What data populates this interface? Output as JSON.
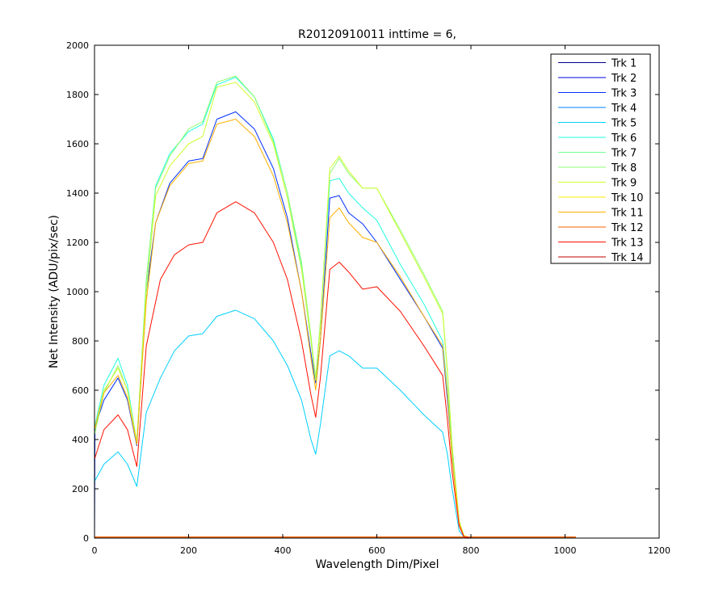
{
  "chart_data": {
    "type": "line",
    "title": "R20120910011 inttime = 6,",
    "xlabel": "Wavelength Dim/Pixel",
    "ylabel": "Net Intensity (ADU/pix/sec)",
    "xlim": [
      0,
      1200
    ],
    "ylim": [
      0,
      2000
    ],
    "xticks": [
      0,
      200,
      400,
      600,
      800,
      1000,
      1200
    ],
    "yticks": [
      0,
      200,
      400,
      600,
      800,
      1000,
      1200,
      1400,
      1600,
      1800,
      2000
    ],
    "legend_position": "top-right",
    "grid": false,
    "series": [
      {
        "name": "Trk 1",
        "color": "#00008f",
        "x": [
          0,
          1023
        ],
        "y": [
          0,
          0
        ]
      },
      {
        "name": "Trk 2",
        "color": "#0000df",
        "x": [
          0,
          1023
        ],
        "y": [
          2,
          2
        ]
      },
      {
        "name": "Trk 3",
        "color": "#0030ff",
        "x": [
          0,
          1,
          20,
          50,
          70,
          90,
          110,
          130,
          160,
          200,
          230,
          260,
          300,
          340,
          380,
          410,
          440,
          460,
          470,
          480,
          500,
          520,
          540,
          570,
          600,
          650,
          700,
          740,
          750,
          760,
          775,
          785,
          800,
          1023
        ],
        "y": [
          0,
          450,
          560,
          650,
          560,
          375,
          1000,
          1280,
          1440,
          1530,
          1540,
          1700,
          1730,
          1660,
          1500,
          1300,
          1000,
          750,
          630,
          800,
          1380,
          1390,
          1320,
          1275,
          1200,
          1050,
          900,
          770,
          560,
          330,
          60,
          10,
          0,
          0
        ]
      },
      {
        "name": "Trk 4",
        "color": "#0080ff",
        "x": [
          0,
          1023
        ],
        "y": [
          3,
          3
        ]
      },
      {
        "name": "Trk 5",
        "color": "#00cfff",
        "x": [
          0,
          20,
          50,
          70,
          90,
          110,
          140,
          170,
          200,
          230,
          260,
          300,
          340,
          380,
          410,
          440,
          460,
          470,
          480,
          500,
          520,
          540,
          570,
          600,
          650,
          700,
          740,
          750,
          760,
          775,
          785,
          800,
          1023
        ],
        "y": [
          230,
          300,
          350,
          300,
          210,
          510,
          650,
          760,
          820,
          830,
          900,
          925,
          890,
          800,
          700,
          560,
          400,
          340,
          460,
          740,
          760,
          740,
          690,
          690,
          600,
          500,
          430,
          340,
          200,
          30,
          5,
          0,
          0
        ]
      },
      {
        "name": "Trk 6",
        "color": "#20ffdf",
        "x": [
          0,
          20,
          50,
          70,
          90,
          110,
          130,
          160,
          200,
          230,
          260,
          300,
          340,
          380,
          410,
          440,
          460,
          470,
          480,
          500,
          520,
          540,
          570,
          600,
          650,
          700,
          740,
          750,
          760,
          775,
          785,
          800,
          1023
        ],
        "y": [
          450,
          620,
          730,
          620,
          390,
          1040,
          1430,
          1560,
          1650,
          1680,
          1840,
          1870,
          1790,
          1620,
          1400,
          1100,
          800,
          640,
          870,
          1450,
          1460,
          1400,
          1340,
          1290,
          1110,
          950,
          800,
          600,
          360,
          70,
          10,
          0,
          0
        ]
      },
      {
        "name": "Trk 7",
        "color": "#6fff8f",
        "x": [
          0,
          1023
        ],
        "y": [
          4,
          4
        ]
      },
      {
        "name": "Trk 8",
        "color": "#8fff6f",
        "x": [
          0,
          20,
          50,
          70,
          90,
          110,
          130,
          160,
          200,
          230,
          260,
          300,
          340,
          380,
          410,
          440,
          460,
          470,
          480,
          500,
          520,
          540,
          570,
          600,
          650,
          700,
          740,
          750,
          760,
          775,
          785,
          800,
          1023
        ],
        "y": [
          420,
          590,
          700,
          600,
          390,
          1050,
          1420,
          1550,
          1660,
          1690,
          1850,
          1875,
          1790,
          1610,
          1400,
          1120,
          820,
          650,
          880,
          1480,
          1540,
          1480,
          1420,
          1420,
          1250,
          1070,
          920,
          680,
          380,
          70,
          10,
          0,
          0
        ]
      },
      {
        "name": "Trk 9",
        "color": "#cfff30",
        "x": [
          0,
          20,
          50,
          70,
          90,
          110,
          130,
          160,
          200,
          230,
          260,
          300,
          340,
          380,
          410,
          440,
          460,
          470,
          480,
          500,
          520,
          540,
          570,
          600,
          650,
          700,
          740,
          750,
          760,
          775,
          785,
          800,
          1023
        ],
        "y": [
          440,
          600,
          690,
          600,
          390,
          1000,
          1390,
          1510,
          1600,
          1630,
          1830,
          1850,
          1770,
          1600,
          1380,
          1090,
          800,
          640,
          860,
          1500,
          1550,
          1490,
          1420,
          1420,
          1240,
          1060,
          910,
          670,
          370,
          70,
          10,
          0,
          0
        ]
      },
      {
        "name": "Trk 10",
        "color": "#ffef00",
        "x": [
          0,
          1023
        ],
        "y": [
          3,
          3
        ]
      },
      {
        "name": "Trk 11",
        "color": "#ffaf00",
        "x": [
          0,
          20,
          50,
          70,
          90,
          110,
          130,
          160,
          200,
          230,
          260,
          300,
          340,
          380,
          410,
          440,
          460,
          470,
          480,
          500,
          520,
          540,
          570,
          600,
          650,
          700,
          740,
          750,
          760,
          775,
          785,
          800,
          1023
        ],
        "y": [
          440,
          590,
          660,
          570,
          380,
          960,
          1280,
          1430,
          1520,
          1530,
          1680,
          1700,
          1630,
          1470,
          1280,
          1000,
          730,
          600,
          800,
          1300,
          1340,
          1280,
          1220,
          1200,
          1060,
          900,
          780,
          580,
          320,
          60,
          10,
          0,
          0
        ]
      },
      {
        "name": "Trk 12",
        "color": "#ff6000",
        "x": [
          0,
          1023
        ],
        "y": [
          5,
          5
        ]
      },
      {
        "name": "Trk 13",
        "color": "#ff1000",
        "x": [
          0,
          20,
          50,
          70,
          90,
          110,
          140,
          170,
          200,
          230,
          260,
          300,
          340,
          380,
          410,
          440,
          460,
          470,
          480,
          500,
          520,
          540,
          570,
          600,
          650,
          700,
          740,
          750,
          760,
          775,
          785,
          800,
          1023
        ],
        "y": [
          320,
          440,
          500,
          440,
          290,
          780,
          1050,
          1150,
          1190,
          1200,
          1320,
          1365,
          1320,
          1200,
          1050,
          800,
          580,
          490,
          650,
          1090,
          1120,
          1080,
          1010,
          1020,
          920,
          780,
          660,
          480,
          270,
          50,
          5,
          0,
          0
        ]
      },
      {
        "name": "Trk 14",
        "color": "#bf0000",
        "x": [
          0,
          1023
        ],
        "y": [
          1,
          1
        ]
      }
    ]
  }
}
